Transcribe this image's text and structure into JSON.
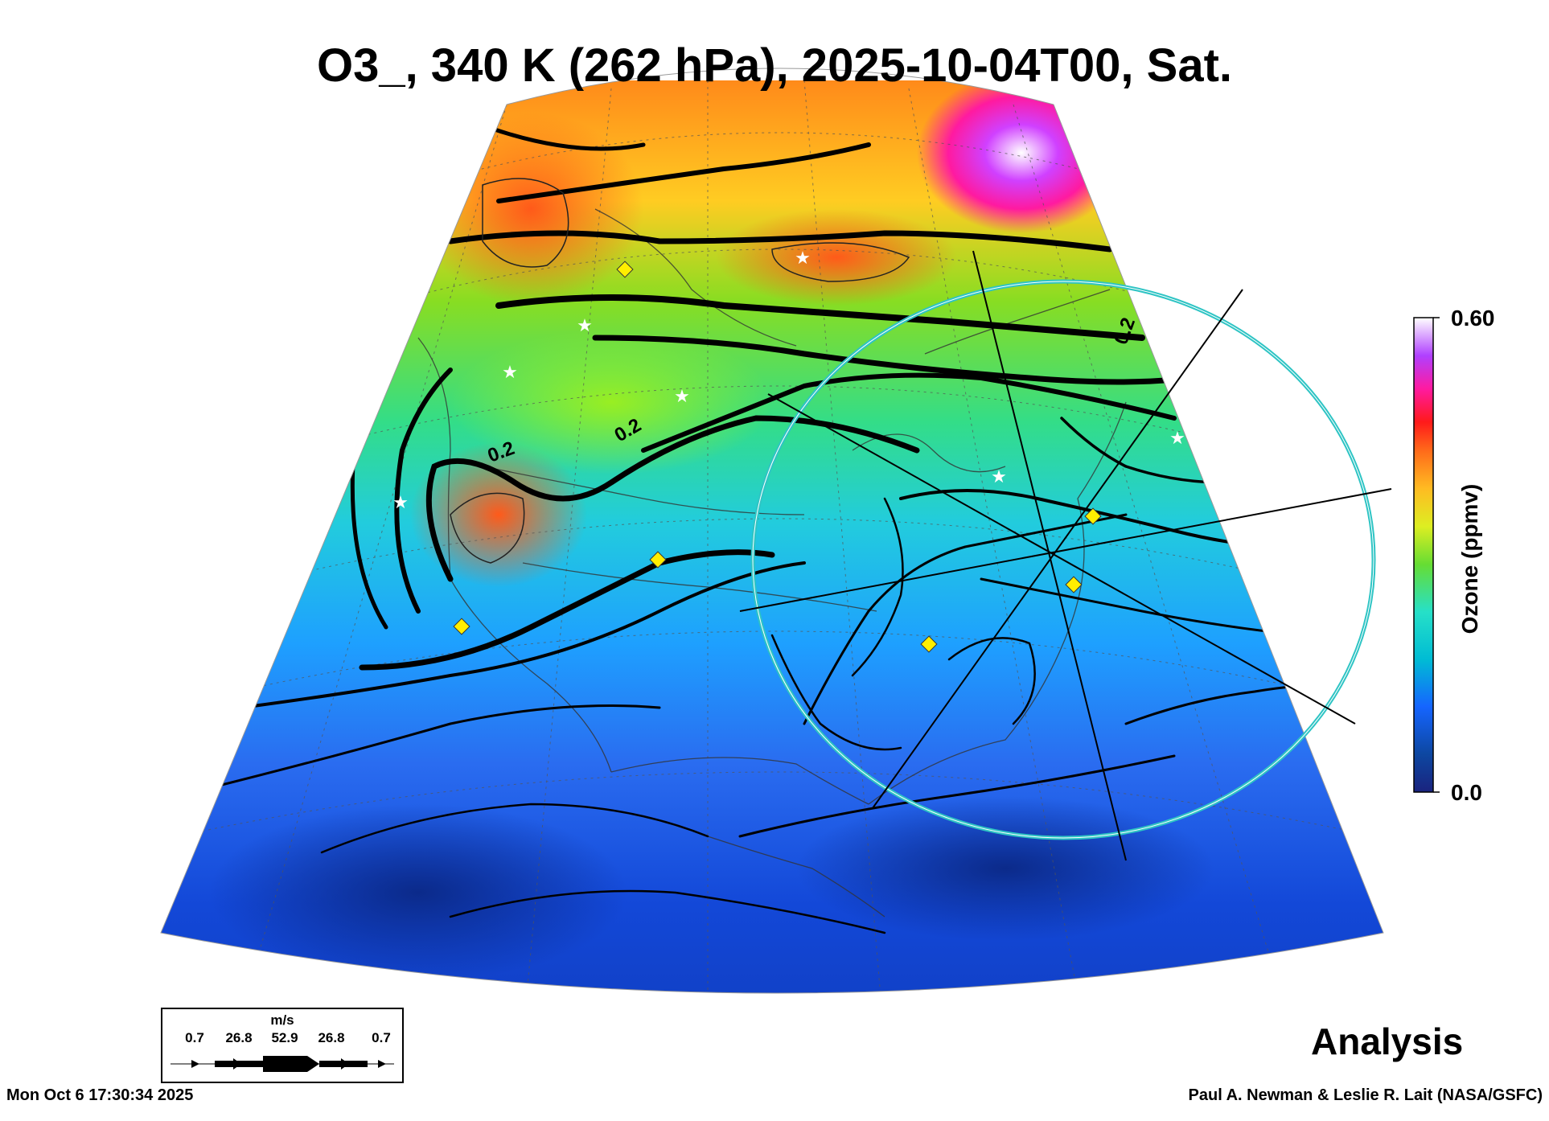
{
  "title": "O3_, 340 K (262 hPa), 2025-10-04T00, Sat.",
  "product_label": "Analysis",
  "timestamp": "Mon Oct  6 17:30:34 2025",
  "credit": "Paul A. Newman & Leslie R. Lait (NASA/GSFC)",
  "colorbar": {
    "title": "Ozone (ppmv)",
    "max_label": "0.60",
    "min_label": "0.0",
    "stops": [
      "#1a237e",
      "#0d47a1",
      "#1565ff",
      "#00bcd4",
      "#26e0c8",
      "#66dd33",
      "#ddee22",
      "#ffbb22",
      "#ff6a1a",
      "#ff1a1a",
      "#ff1aa0",
      "#b040ff",
      "#ffffff"
    ]
  },
  "wind_legend": {
    "unit": "m/s",
    "values": [
      "0.7",
      "26.8",
      "52.9",
      "26.8",
      "0.7"
    ]
  },
  "contour_labels": [
    "0.2",
    "0.2",
    "0.2"
  ],
  "colors": {
    "ring": "#2ec4c4",
    "marker_diamond": "#ffee00",
    "marker_star": "#ffffff"
  }
}
